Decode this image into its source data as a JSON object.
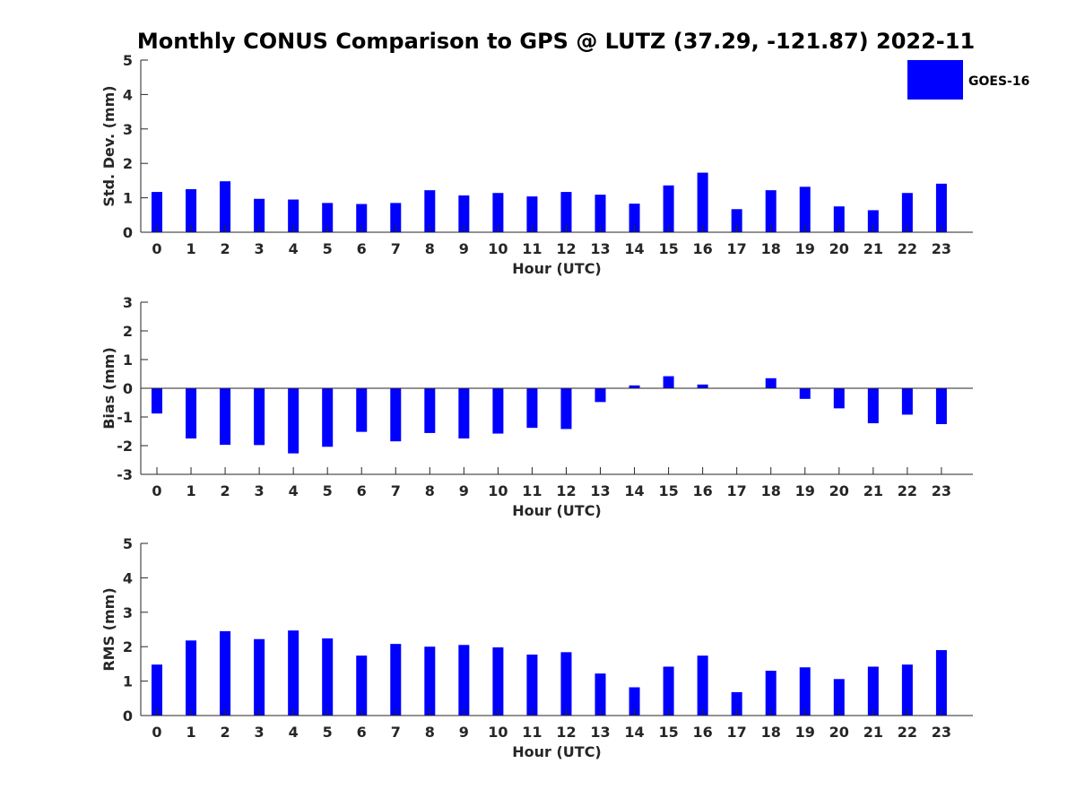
{
  "title": "Monthly CONUS Comparison to GPS @ LUTZ (37.29, -121.87) 2022-11",
  "legend": {
    "label": "GOES-16",
    "position": "top-right",
    "color": "#0000ff"
  },
  "chart_data": [
    {
      "type": "bar",
      "title": "Monthly CONUS Comparison to GPS @ LUTZ (37.29, -121.87) 2022-11",
      "xlabel": "Hour (UTC)",
      "ylabel": "Std. Dev. (mm)",
      "ylim": [
        0,
        5
      ],
      "yticks": [
        0,
        1,
        2,
        3,
        4,
        5
      ],
      "categories": [
        "0",
        "1",
        "2",
        "3",
        "4",
        "5",
        "6",
        "7",
        "8",
        "9",
        "10",
        "11",
        "12",
        "13",
        "14",
        "15",
        "16",
        "17",
        "18",
        "19",
        "20",
        "21",
        "22",
        "23"
      ],
      "series": [
        {
          "name": "GOES-16",
          "values": [
            1.17,
            1.25,
            1.48,
            0.97,
            0.95,
            0.85,
            0.82,
            0.85,
            1.22,
            1.07,
            1.14,
            1.04,
            1.17,
            1.09,
            0.83,
            1.36,
            1.73,
            0.67,
            1.22,
            1.32,
            0.75,
            0.64,
            1.14,
            1.41
          ]
        }
      ]
    },
    {
      "type": "bar",
      "xlabel": "Hour (UTC)",
      "ylabel": "Bias (mm)",
      "ylim": [
        -3,
        3
      ],
      "yticks": [
        -3,
        -2,
        -1,
        0,
        1,
        2,
        3
      ],
      "categories": [
        "0",
        "1",
        "2",
        "3",
        "4",
        "5",
        "6",
        "7",
        "8",
        "9",
        "10",
        "11",
        "12",
        "13",
        "14",
        "15",
        "16",
        "17",
        "18",
        "19",
        "20",
        "21",
        "22",
        "23"
      ],
      "series": [
        {
          "name": "GOES-16",
          "values": [
            -0.88,
            -1.75,
            -1.97,
            -1.98,
            -2.27,
            -2.04,
            -1.52,
            -1.85,
            -1.56,
            -1.75,
            -1.58,
            -1.38,
            -1.42,
            -0.48,
            0.1,
            0.42,
            0.13,
            0.0,
            0.35,
            -0.37,
            -0.7,
            -1.22,
            -0.92,
            -1.25
          ]
        }
      ]
    },
    {
      "type": "bar",
      "xlabel": "Hour (UTC)",
      "ylabel": "RMS (mm)",
      "ylim": [
        0,
        5
      ],
      "yticks": [
        0,
        1,
        2,
        3,
        4,
        5
      ],
      "categories": [
        "0",
        "1",
        "2",
        "3",
        "4",
        "5",
        "6",
        "7",
        "8",
        "9",
        "10",
        "11",
        "12",
        "13",
        "14",
        "15",
        "16",
        "17",
        "18",
        "19",
        "20",
        "21",
        "22",
        "23"
      ],
      "series": [
        {
          "name": "GOES-16",
          "values": [
            1.48,
            2.18,
            2.45,
            2.22,
            2.47,
            2.24,
            1.74,
            2.08,
            2.0,
            2.05,
            1.98,
            1.77,
            1.84,
            1.22,
            0.82,
            1.42,
            1.74,
            0.68,
            1.3,
            1.4,
            1.06,
            1.42,
            1.48,
            1.9
          ]
        }
      ]
    }
  ]
}
